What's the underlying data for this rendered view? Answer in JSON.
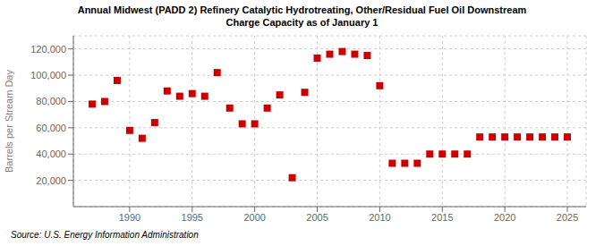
{
  "chart_data": {
    "type": "scatter",
    "title": "Annual Midwest (PADD 2) Refinery Catalytic Hydrotreating, Other/Residual Fuel Oil Downstream\nCharge Capacity as of January 1",
    "ylabel": "Barrels per Stream Day",
    "annotations": [
      "Source: U.S. Energy Information Administration"
    ],
    "x": [
      1987,
      1988,
      1989,
      1990,
      1991,
      1992,
      1993,
      1994,
      1995,
      1996,
      1997,
      1998,
      1999,
      2000,
      2001,
      2002,
      2003,
      2004,
      2005,
      2006,
      2007,
      2008,
      2009,
      2010,
      2011,
      2012,
      2013,
      2014,
      2015,
      2016,
      2017,
      2018,
      2019,
      2020,
      2021,
      2022,
      2023,
      2024,
      2025
    ],
    "values": [
      78000,
      80000,
      96000,
      58000,
      52000,
      64000,
      88000,
      84000,
      86000,
      84000,
      102000,
      75000,
      63000,
      63000,
      75000,
      85000,
      22000,
      87000,
      113000,
      116000,
      118000,
      116000,
      115000,
      92000,
      33000,
      33000,
      33000,
      40000,
      40000,
      40000,
      40000,
      53000,
      53000,
      53000,
      53000,
      53000,
      53000,
      53000,
      53000
    ],
    "color": "#cc0000",
    "marker": "square",
    "xlim": [
      1985.5,
      2026.5
    ],
    "ylim": [
      0,
      130000
    ],
    "xticks": [
      1990,
      1995,
      2000,
      2005,
      2010,
      2015,
      2020,
      2025
    ],
    "yticks": [
      {
        "value": 20000,
        "label": "20,000"
      },
      {
        "value": 40000,
        "label": "40,000"
      },
      {
        "value": 60000,
        "label": "60,000"
      },
      {
        "value": 80000,
        "label": "80,000"
      },
      {
        "value": 100000,
        "label": "100,000"
      },
      {
        "value": 120000,
        "label": "120,000"
      }
    ],
    "grid": true
  }
}
